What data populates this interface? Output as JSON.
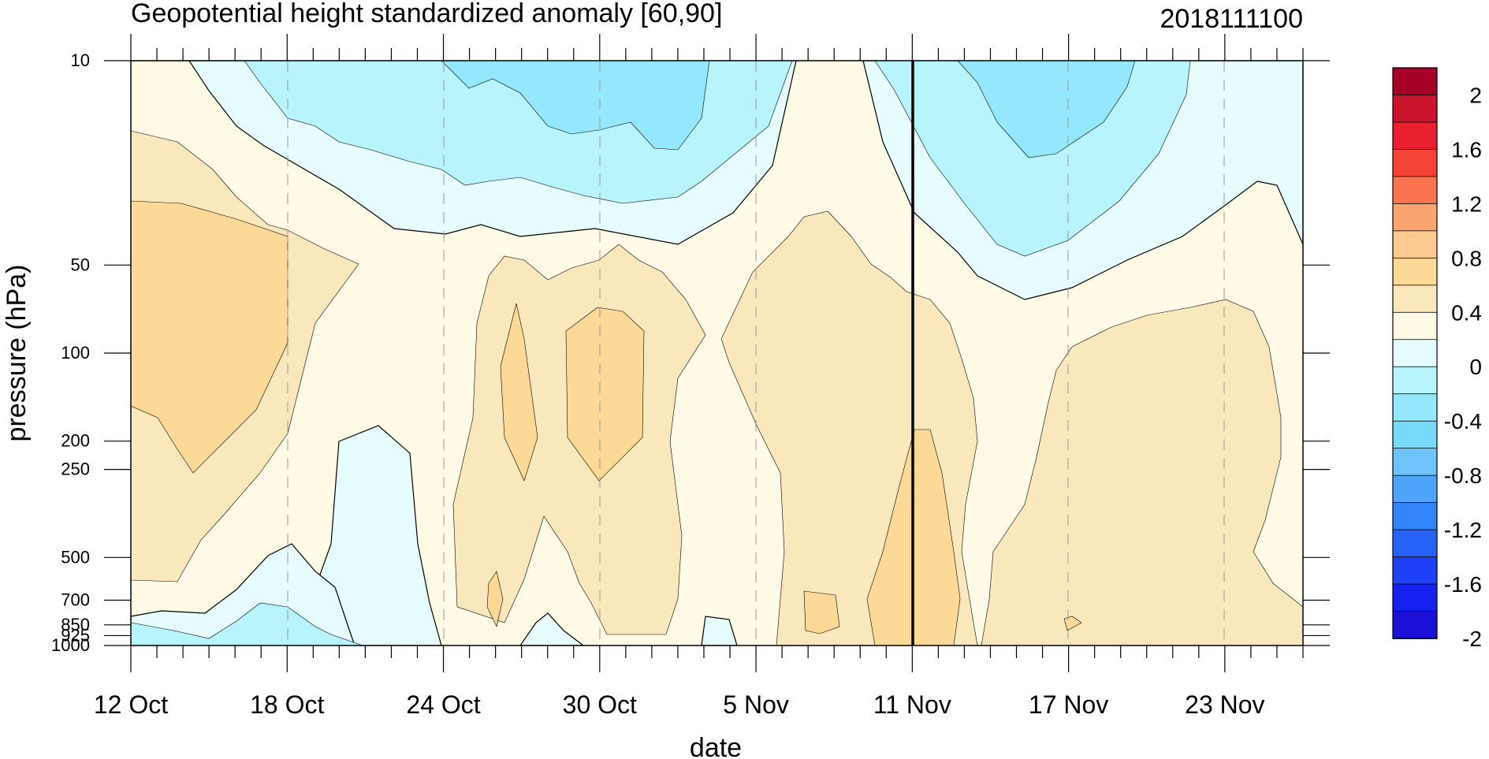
{
  "chart_data": {
    "type": "heatmap",
    "title": "Geopotential height standardized anomaly [60,90]",
    "run_label": "2018111100",
    "xlabel": "date",
    "ylabel": "pressure (hPa)",
    "x_ticks": [
      "12 Oct",
      "18 Oct",
      "24 Oct",
      "30 Oct",
      "5 Nov",
      "11 Nov",
      "17 Nov",
      "23 Nov"
    ],
    "y_ticks": [
      10,
      50,
      100,
      200,
      250,
      500,
      700,
      850,
      925,
      1000
    ],
    "y_scale": "log",
    "ylim": [
      1000,
      10
    ],
    "xlim": [
      "12 Oct",
      "26 Nov"
    ],
    "vertical_marker": "11 Nov",
    "grid": "dashed vertical lines at date ticks",
    "colorbar": {
      "labels": [
        2,
        1.6,
        1.2,
        0.8,
        0.4,
        0,
        -0.4,
        -0.8,
        -1.2,
        -1.6,
        -2
      ],
      "colors": [
        "#a50026",
        "#c9142b",
        "#e8202f",
        "#f44436",
        "#fa744f",
        "#fca46f",
        "#fcc98e",
        "#fcd996",
        "#fae8bd",
        "#fffbe6",
        "#e6fcfd",
        "#b8f4fc",
        "#95e8fb",
        "#78daf9",
        "#6ec4fa",
        "#4ea4fb",
        "#3384f8",
        "#2863f9",
        "#1e40f9",
        "#1620ef",
        "#1a10d6"
      ]
    },
    "contours": [
      {
        "level": 0.8,
        "regions": [
          "12–17 Oct, 50–250 hPa",
          "27–28 Oct, 100–250 hPa",
          "29–31 Oct, 70–250 hPa",
          "10–11 Nov, 180–1000 hPa",
          "27 Oct, 600–800 hPa",
          "7–8 Nov, 650–850 hPa"
        ]
      },
      {
        "level": 0.4,
        "regions": [
          "12–19 Oct, 20–650 hPa",
          "25–29 Oct, 50–1000 hPa",
          "29 Oct–4 Nov, 50–1000 hPa",
          "5–13 Nov, 30–1000 hPa",
          "14 Nov–26 Nov, 60–1000 hPa"
        ]
      },
      {
        "level": 0,
        "regions": [
          "12 Oct–5 Nov, 10–40 hPa boundary",
          "21–24 Oct, 200–1000 hPa",
          "5–8 Nov, 10–40 hPa"
        ]
      },
      {
        "level": -0.4,
        "regions": [
          "14–24 Oct, 10–30 hPa",
          "22–28 Oct, 10–35 hPa",
          "12–20 Nov, 10–45 hPa"
        ]
      },
      {
        "level": -0.8,
        "regions": [
          "26 Oct–2 Nov, 10–25 hPa",
          "14–19 Nov, 10–25 hPa"
        ]
      }
    ]
  }
}
